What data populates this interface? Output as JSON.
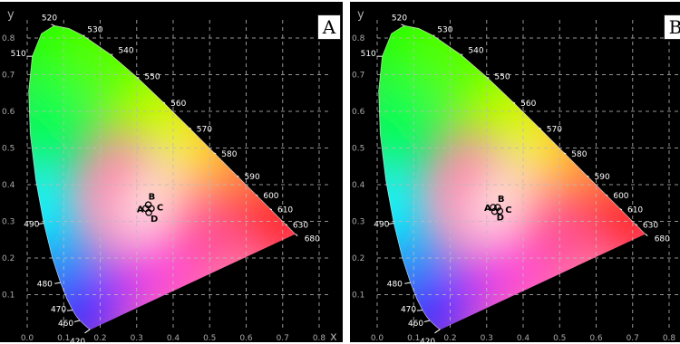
{
  "chart_data": [
    {
      "type": "scatter",
      "panel_label": "A",
      "xlabel": "x",
      "ylabel": "y",
      "xlim": [
        0.0,
        0.8
      ],
      "ylim": [
        0.0,
        0.8
      ],
      "x_ticks": [
        0.0,
        0.1,
        0.2,
        0.3,
        0.4,
        0.5,
        0.6,
        0.7,
        0.8
      ],
      "y_ticks": [
        0.1,
        0.2,
        0.3,
        0.4,
        0.5,
        0.6,
        0.7,
        0.8
      ],
      "wavelength_labels": [
        "420",
        "460",
        "470",
        "480",
        "490",
        "510",
        "520",
        "530",
        "540",
        "550",
        "560",
        "570",
        "580",
        "590",
        "600",
        "610",
        "630",
        "680"
      ],
      "points": [
        {
          "label": "A",
          "x": 0.325,
          "y": 0.335
        },
        {
          "label": "B",
          "x": 0.332,
          "y": 0.345
        },
        {
          "label": "C",
          "x": 0.34,
          "y": 0.335
        },
        {
          "label": "D",
          "x": 0.333,
          "y": 0.324
        }
      ],
      "grid": true
    },
    {
      "type": "scatter",
      "panel_label": "B",
      "xlabel": "x",
      "ylabel": "y",
      "xlim": [
        0.0,
        0.8
      ],
      "ylim": [
        0.0,
        0.8
      ],
      "x_ticks": [
        0.0,
        0.1,
        0.2,
        0.3,
        0.4,
        0.5,
        0.6,
        0.7,
        0.8
      ],
      "y_ticks": [
        0.1,
        0.2,
        0.3,
        0.4,
        0.5,
        0.6,
        0.7,
        0.8
      ],
      "wavelength_labels": [
        "420",
        "460",
        "470",
        "480",
        "490",
        "510",
        "520",
        "530",
        "540",
        "550",
        "560",
        "570",
        "580",
        "590",
        "600",
        "610",
        "630",
        "680"
      ],
      "points": [
        {
          "label": "A",
          "x": 0.318,
          "y": 0.338
        },
        {
          "label": "B",
          "x": 0.33,
          "y": 0.338
        },
        {
          "label": "C",
          "x": 0.336,
          "y": 0.328
        },
        {
          "label": "D",
          "x": 0.322,
          "y": 0.327
        }
      ],
      "grid": true
    }
  ]
}
